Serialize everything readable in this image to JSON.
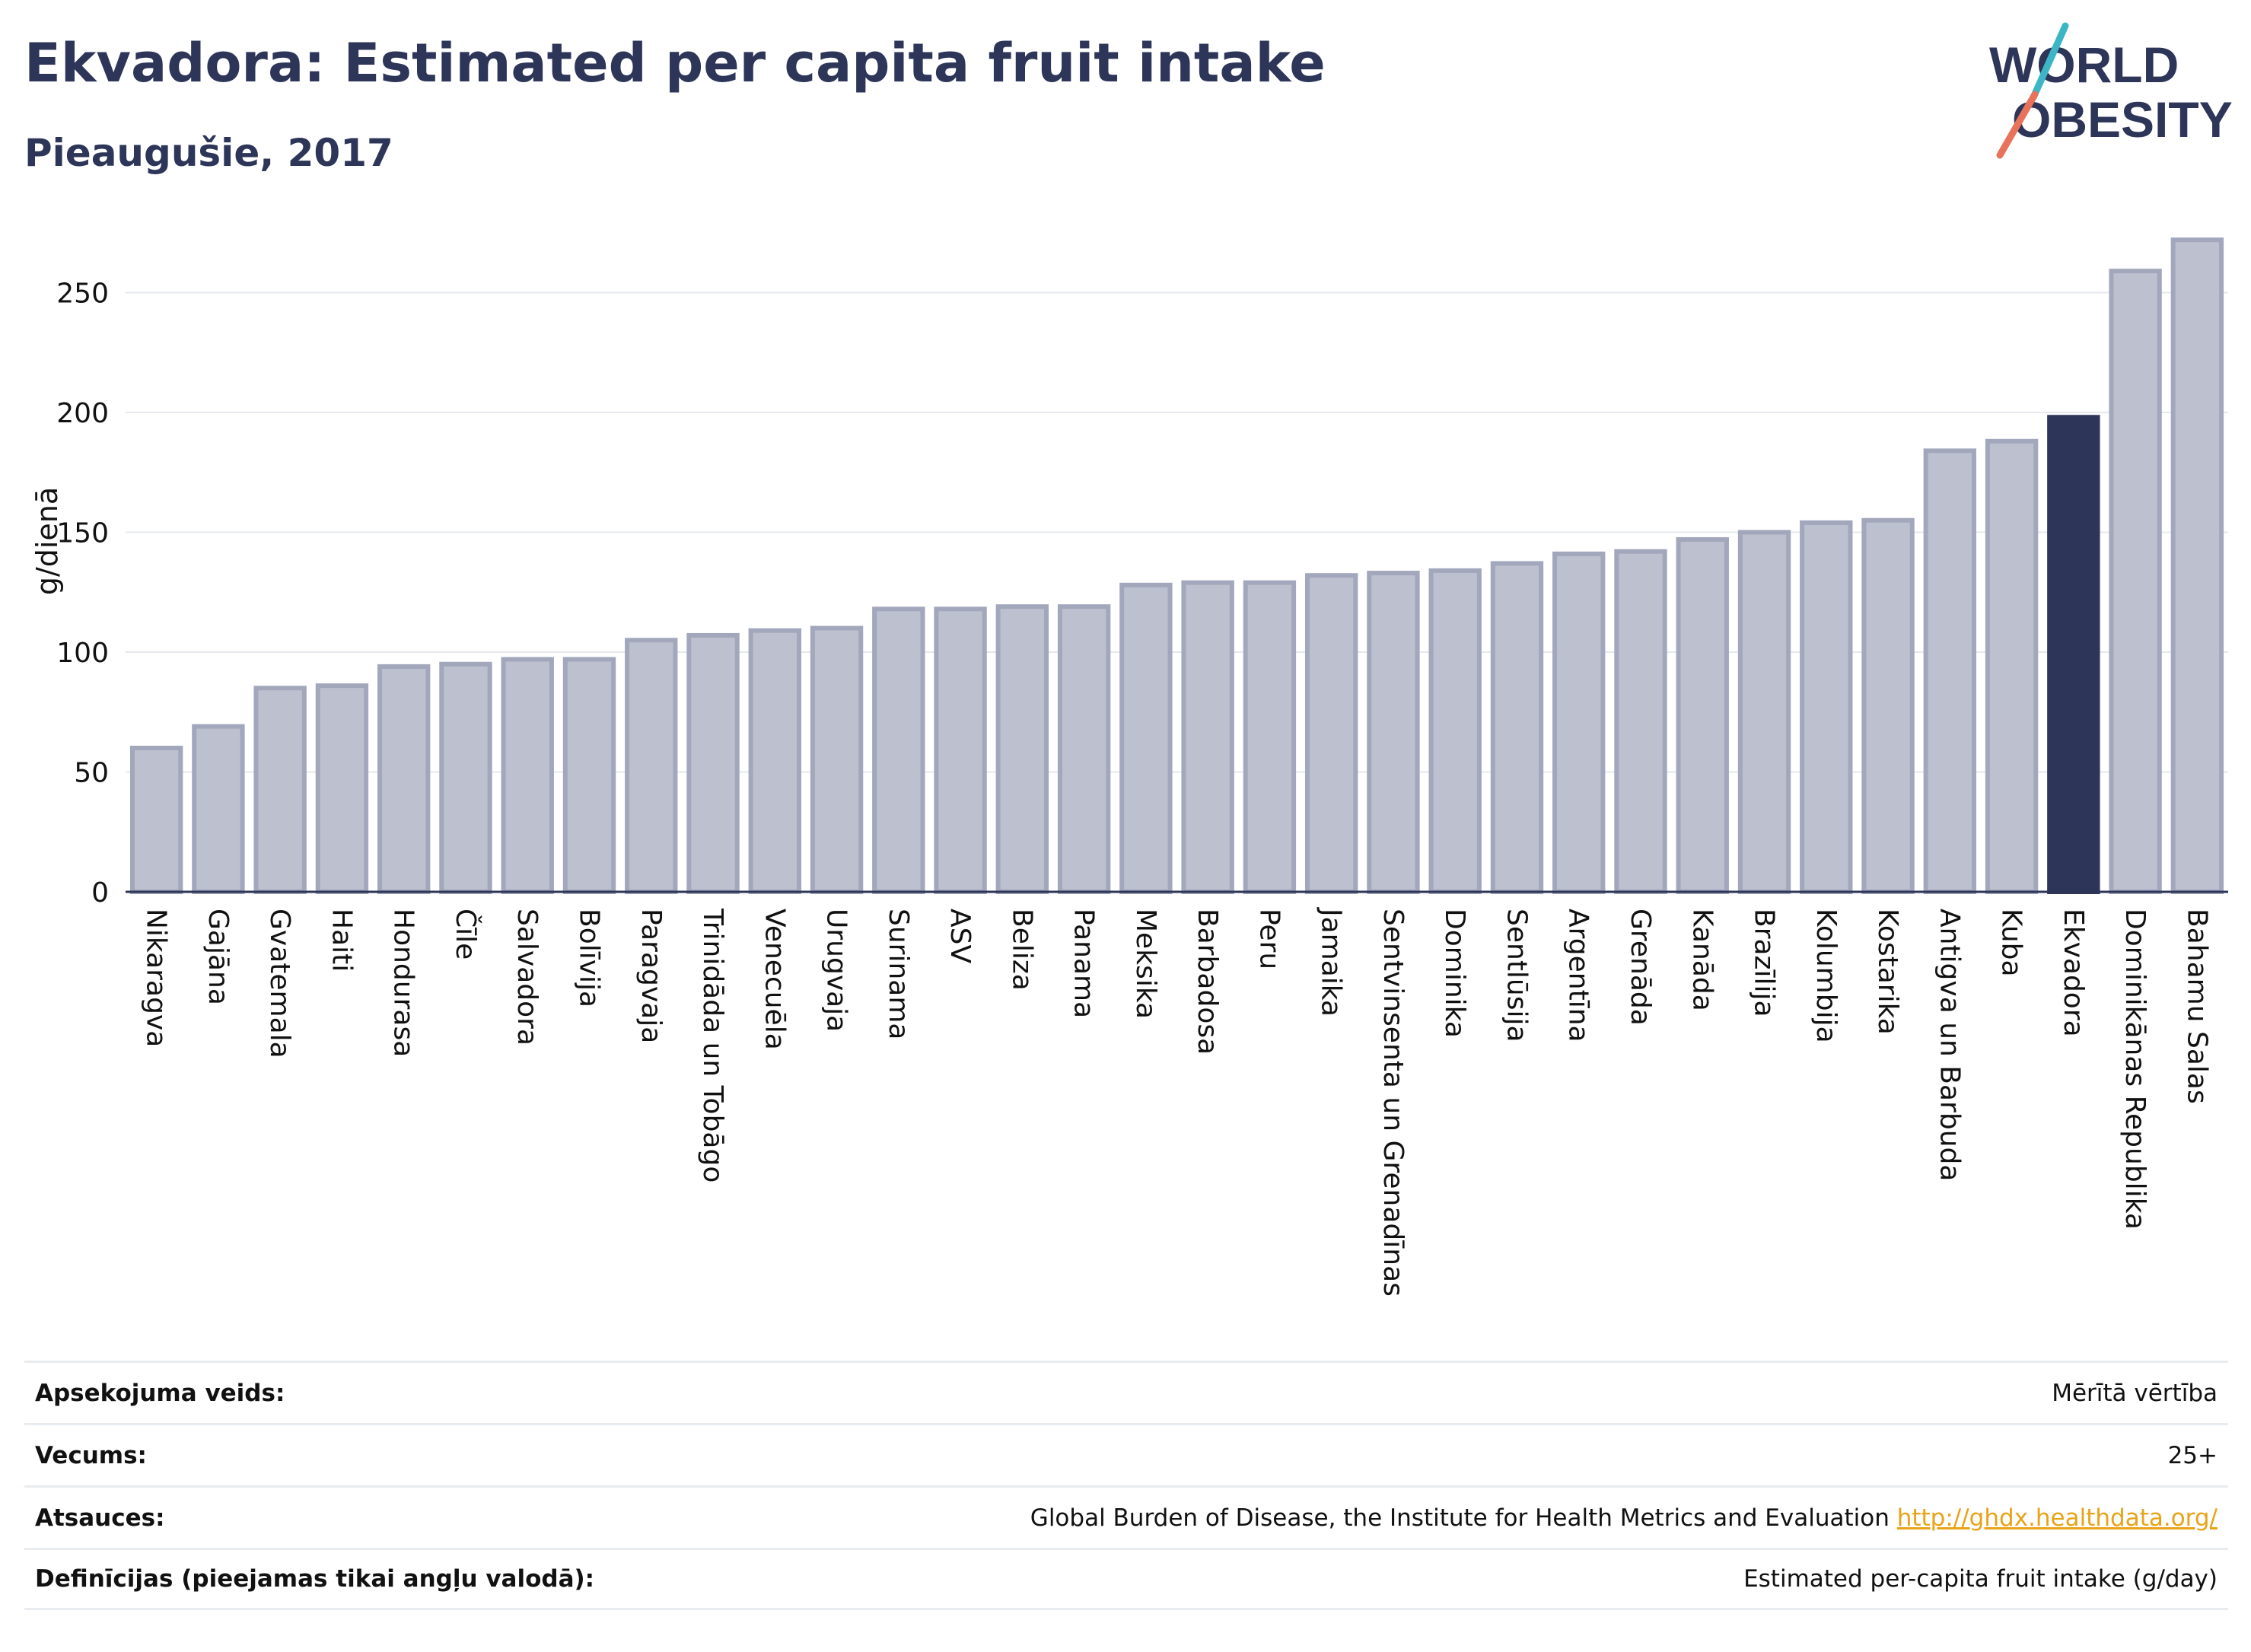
{
  "title": "Ekvadora: Estimated per capita fruit intake",
  "subtitle": "Pieaugušie, 2017",
  "logo": {
    "line1": "WORLD",
    "line2": "OBESITY",
    "colors": [
      "#2d3558",
      "#e8735a",
      "#3cb6c5"
    ]
  },
  "colors": {
    "bar": "#bcc0cf",
    "bar_stroke": "#a2a7bc",
    "highlight": "#2d3558",
    "text": "#2d3558",
    "link": "#e8a317"
  },
  "chart_data": {
    "type": "bar",
    "ylabel": "g/dienā",
    "ylim": [
      0,
      280
    ],
    "yticks": [
      0,
      50,
      100,
      150,
      200,
      250
    ],
    "grid": true,
    "highlight": "Ekvadora",
    "categories": [
      "Nikaragva",
      "Gajāna",
      "Gvatemala",
      "Haiti",
      "Hondurasa",
      "Čīle",
      "Salvadora",
      "Bolīvija",
      "Paragvaja",
      "Trinidāda un Tobāgo",
      "Venecuēla",
      "Urugvaja",
      "Surinama",
      "ASV",
      "Beliza",
      "Panama",
      "Meksika",
      "Barbadosa",
      "Peru",
      "Jamaika",
      "Sentvinsenta un Grenadīnas",
      "Dominika",
      "Sentlūsija",
      "Argentīna",
      "Grenāda",
      "Kanāda",
      "Brazīlija",
      "Kolumbija",
      "Kostarika",
      "Antigva un Barbuda",
      "Kuba",
      "Ekvadora",
      "Dominikānas Republika",
      "Bahamu Salas"
    ],
    "values": [
      60,
      69,
      85,
      86,
      94,
      95,
      97,
      97,
      105,
      107,
      109,
      110,
      118,
      118,
      119,
      119,
      128,
      129,
      129,
      132,
      133,
      134,
      137,
      141,
      142,
      147,
      150,
      154,
      155,
      184,
      188,
      198,
      259,
      272
    ]
  },
  "footer": {
    "rows": [
      {
        "label": "Apsekojuma veids:",
        "value": "Mērītā vērtība"
      },
      {
        "label": "Vecums:",
        "value": "25+"
      },
      {
        "label": "Atsauces:",
        "value": "Global Burden of Disease, the Institute for Health Metrics and Evaluation",
        "link": "http://ghdx.healthdata.org/"
      },
      {
        "label": "Definīcijas (pieejamas tikai angļu valodā):",
        "value": "Estimated per-capita fruit intake (g/day)"
      }
    ]
  }
}
